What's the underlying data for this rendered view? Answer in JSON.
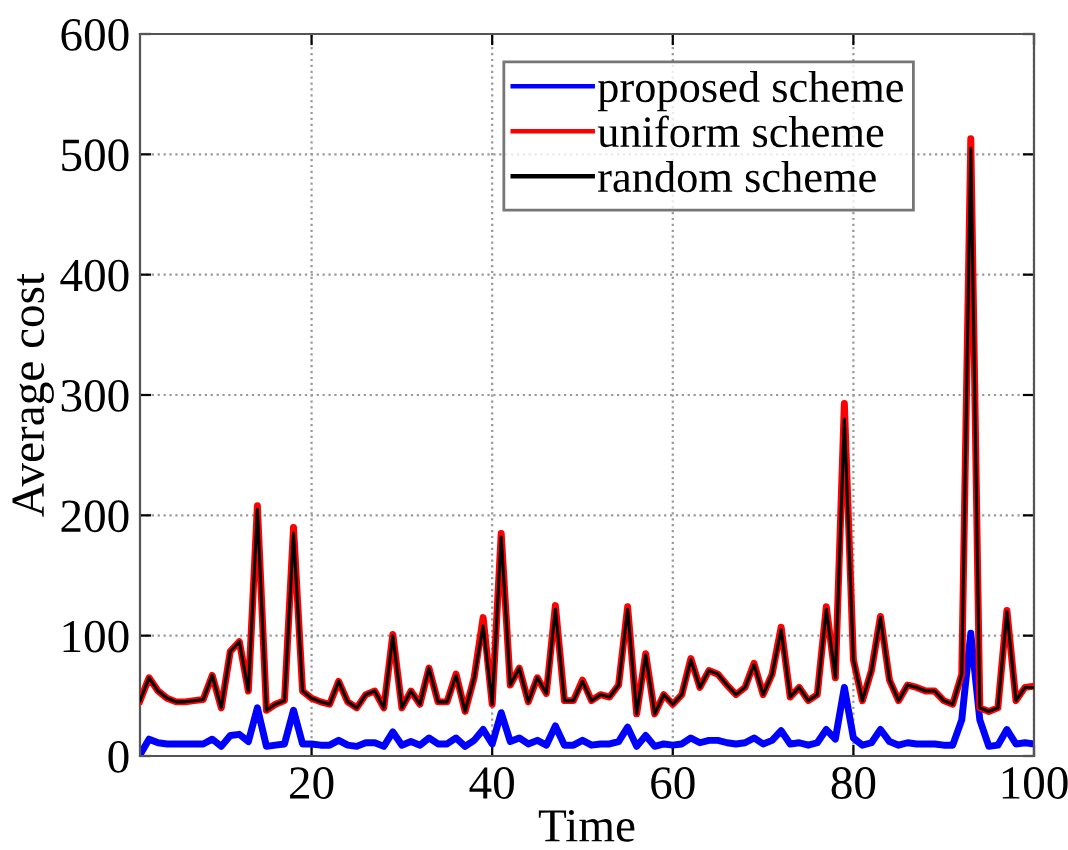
{
  "chart_data": {
    "type": "line",
    "xlabel": "Time",
    "ylabel": "Average cost",
    "x": [
      1,
      2,
      3,
      4,
      5,
      6,
      7,
      8,
      9,
      10,
      11,
      12,
      13,
      14,
      15,
      16,
      17,
      18,
      19,
      20,
      21,
      22,
      23,
      24,
      25,
      26,
      27,
      28,
      29,
      30,
      31,
      32,
      33,
      34,
      35,
      36,
      37,
      38,
      39,
      40,
      41,
      42,
      43,
      44,
      45,
      46,
      47,
      48,
      49,
      50,
      51,
      52,
      53,
      54,
      55,
      56,
      57,
      58,
      59,
      60,
      61,
      62,
      63,
      64,
      65,
      66,
      67,
      68,
      69,
      70,
      71,
      72,
      73,
      74,
      75,
      76,
      77,
      78,
      79,
      80,
      81,
      82,
      83,
      84,
      85,
      86,
      87,
      88,
      89,
      90,
      91,
      92,
      93,
      94,
      95,
      96,
      97,
      98,
      99,
      100
    ],
    "series": [
      {
        "name": "proposed scheme",
        "color": "#0000ff",
        "values": [
          1,
          14,
          11,
          10,
          10,
          10,
          10,
          10,
          14,
          8,
          17,
          18,
          12,
          40,
          8,
          9,
          10,
          38,
          10,
          10,
          9,
          9,
          13,
          9,
          8,
          11,
          11,
          8,
          20,
          9,
          12,
          9,
          15,
          10,
          10,
          15,
          8,
          13,
          22,
          10,
          36,
          12,
          15,
          10,
          13,
          9,
          25,
          9,
          9,
          13,
          9,
          10,
          10,
          12,
          24,
          8,
          17,
          8,
          10,
          9,
          10,
          15,
          11,
          13,
          13,
          11,
          10,
          11,
          15,
          10,
          13,
          21,
          10,
          11,
          9,
          11,
          22,
          14,
          57,
          15,
          9,
          11,
          22,
          12,
          9,
          11,
          10,
          10,
          10,
          9,
          9,
          30,
          102,
          30,
          8,
          9,
          22,
          10,
          11,
          10
        ]
      },
      {
        "name": "uniform scheme",
        "color": "#ff0000",
        "values": [
          46,
          65,
          54,
          48,
          45,
          45,
          46,
          47,
          67,
          40,
          87,
          95,
          54,
          208,
          38,
          43,
          46,
          190,
          54,
          48,
          45,
          43,
          62,
          45,
          40,
          51,
          54,
          40,
          101,
          40,
          54,
          43,
          73,
          45,
          45,
          68,
          37,
          65,
          115,
          43,
          185,
          59,
          73,
          45,
          65,
          52,
          125,
          46,
          46,
          63,
          46,
          51,
          49,
          59,
          124,
          35,
          85,
          35,
          51,
          43,
          51,
          81,
          57,
          71,
          68,
          59,
          51,
          57,
          77,
          51,
          68,
          107,
          49,
          57,
          46,
          51,
          124,
          65,
          293,
          80,
          46,
          71,
          116,
          63,
          46,
          59,
          57,
          54,
          54,
          46,
          43,
          68,
          513,
          40,
          37,
          40,
          121,
          46,
          57,
          58
        ]
      },
      {
        "name": "random scheme",
        "color": "#000000",
        "values": [
          46,
          65,
          54,
          48,
          45,
          45,
          46,
          47,
          67,
          40,
          87,
          95,
          54,
          205,
          38,
          43,
          46,
          185,
          54,
          48,
          45,
          43,
          62,
          45,
          40,
          51,
          54,
          40,
          100,
          40,
          54,
          43,
          73,
          45,
          45,
          67,
          37,
          65,
          108,
          43,
          182,
          59,
          73,
          45,
          65,
          52,
          122,
          46,
          46,
          62,
          46,
          51,
          49,
          59,
          122,
          35,
          84,
          35,
          51,
          43,
          51,
          80,
          57,
          71,
          68,
          59,
          51,
          57,
          76,
          51,
          68,
          105,
          49,
          57,
          46,
          51,
          122,
          65,
          280,
          80,
          46,
          71,
          115,
          63,
          46,
          59,
          57,
          54,
          54,
          46,
          43,
          68,
          505,
          40,
          37,
          40,
          120,
          46,
          57,
          57
        ]
      }
    ],
    "xlim": [
      1,
      100
    ],
    "xticks": [
      20,
      40,
      60,
      80,
      100
    ],
    "ylim": [
      0,
      600
    ],
    "yticks": [
      0,
      100,
      200,
      300,
      400,
      500,
      600
    ],
    "grid": true,
    "legend": "top right",
    "line_style": "solid",
    "marker": "none"
  }
}
